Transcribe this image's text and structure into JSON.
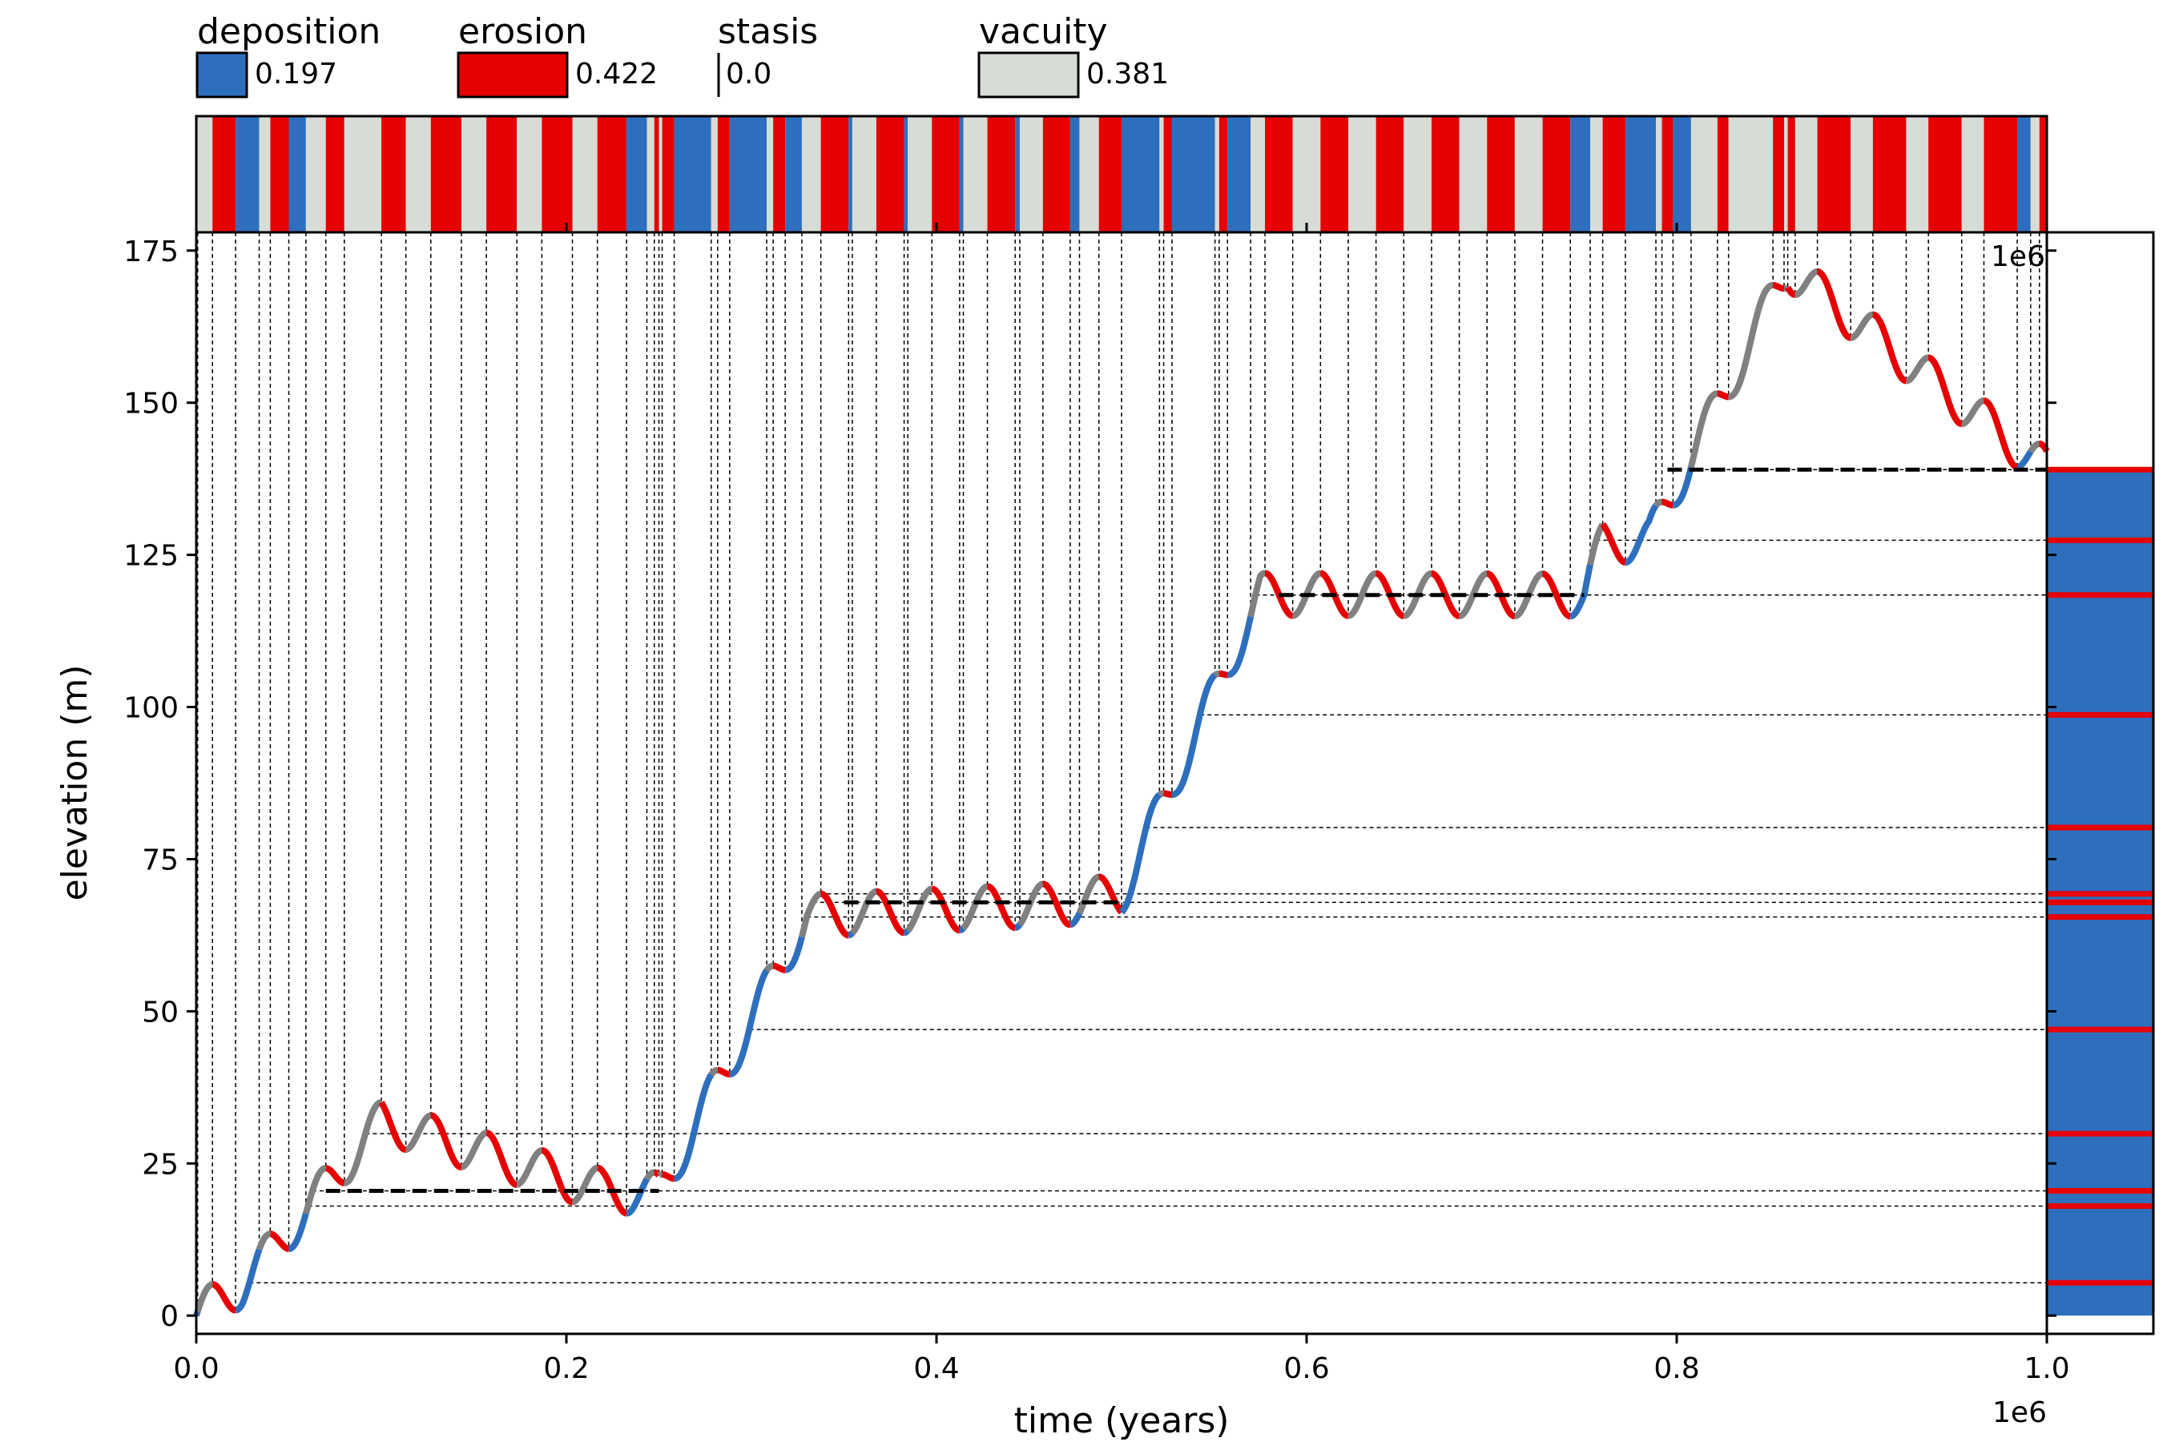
{
  "chart_data": {
    "type": "line",
    "xlabel": "time (years)",
    "ylabel": "elevation (m)",
    "xlim": [
      0,
      1000000
    ],
    "ylim": [
      -3,
      178
    ],
    "x_ticks": [
      0,
      200000,
      400000,
      600000,
      800000,
      1000000
    ],
    "x_tick_labels": [
      "0.0",
      "0.2",
      "0.4",
      "0.6",
      "0.8",
      "1.0"
    ],
    "y_ticks": [
      0,
      25,
      50,
      75,
      100,
      125,
      150,
      175
    ],
    "y_tick_labels": [
      "0",
      "25",
      "50",
      "75",
      "100",
      "125",
      "150",
      "175"
    ],
    "x_offset_label": "1e6",
    "x_offset_label_top": "1e6",
    "grid": false,
    "legend": {
      "placement": "top",
      "entries": [
        {
          "name": "deposition",
          "value": "0.197",
          "color": "#2e6fbd"
        },
        {
          "name": "erosion",
          "value": "0.422",
          "color": "#e60000"
        },
        {
          "name": "stasis",
          "value": "0.0",
          "color": "#000000"
        },
        {
          "name": "vacuity",
          "value": "0.381",
          "color": "#d8dcd7"
        }
      ]
    },
    "colors": {
      "deposition": "#2e6fbd",
      "erosion": "#e60000",
      "vacuity": "#808080",
      "vacuity_bar": "#d8dcd7"
    },
    "model": {
      "trend": [
        [
          0,
          0
        ],
        [
          25000,
          5
        ],
        [
          100000,
          32
        ],
        [
          220000,
          20.5
        ],
        [
          250000,
          20
        ],
        [
          330000,
          65.7
        ],
        [
          470000,
          67.6
        ],
        [
          500000,
          69.3
        ],
        [
          575000,
          118.5
        ],
        [
          750000,
          118.4
        ],
        [
          760000,
          127
        ],
        [
          785000,
          127.5
        ],
        [
          860000,
          172
        ],
        [
          1000000,
          139
        ]
      ],
      "oscillation_amplitude": 3.5,
      "oscillation_period": 30000
    },
    "preserved_surfaces": [
      5.4,
      18.0,
      20.5,
      29.9,
      47.0,
      65.5,
      67.9,
      69.3,
      80.2,
      98.7,
      118.4,
      127.4,
      139.0
    ],
    "hiatus_markers_dashed_thick": [
      {
        "y": 20.5,
        "x0": 70000,
        "x1": 250000
      },
      {
        "y": 67.9,
        "x0": 350000,
        "x1": 500000
      },
      {
        "y": 118.4,
        "x0": 585000,
        "x1": 750000
      },
      {
        "y": 139.0,
        "x0": 795000,
        "x1": 1000000
      }
    ],
    "stratigraphic_column": {
      "top": 139.0,
      "base": 0,
      "fill": "deposition",
      "surfaces_color": "erosion"
    }
  }
}
